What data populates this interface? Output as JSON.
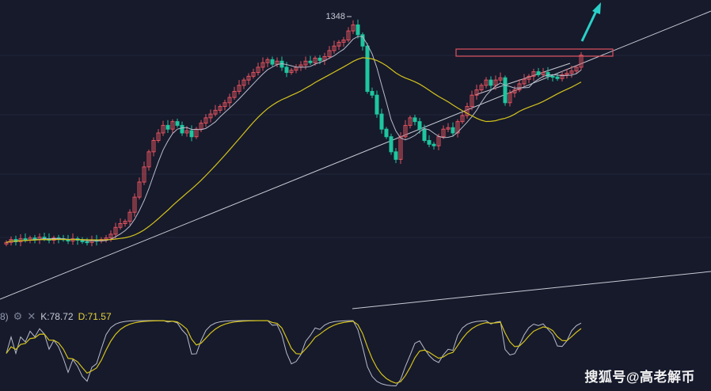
{
  "chart_data": {
    "type": "candlestick",
    "peak_label": "1348",
    "indicator": {
      "prefix": "8)",
      "k_label": "K:78.72",
      "d_label": "D:71.57",
      "k_value": 78.72,
      "d_value": 71.57
    },
    "colors": {
      "background": "#161a2b",
      "up": "#e0525e",
      "down": "#1ec6a0",
      "ma_short": "#b9bccb",
      "ma_long": "#d4c21c",
      "trendline": "#c9cbd4",
      "arrow": "#2ad0c8",
      "box": "#e0525e"
    },
    "closes": [
      30,
      34,
      31,
      35,
      33,
      36,
      34,
      37,
      35,
      33,
      36,
      35,
      34,
      32,
      35,
      33,
      31,
      30,
      33,
      32,
      34,
      36,
      41,
      50,
      55,
      58,
      70,
      90,
      110,
      130,
      150,
      165,
      175,
      185,
      180,
      190,
      185,
      175,
      178,
      170,
      180,
      188,
      195,
      200,
      205,
      210,
      215,
      222,
      230,
      238,
      245,
      250,
      255,
      262,
      268,
      272,
      266,
      270,
      262,
      255,
      258,
      262,
      265,
      270,
      268,
      274,
      271,
      276,
      284,
      290,
      295,
      298,
      310,
      318,
      305,
      290,
      230,
      225,
      200,
      180,
      170,
      150,
      140,
      170,
      185,
      195,
      190,
      180,
      165,
      160,
      158,
      170,
      180,
      182,
      175,
      190,
      198,
      210,
      225,
      232,
      238,
      245,
      238,
      245,
      248,
      215,
      228,
      232,
      240,
      246,
      250,
      256,
      252,
      255,
      250,
      249,
      247,
      252,
      254,
      257,
      262,
      278
    ],
    "watermark": "搜狐号@高老解币"
  }
}
